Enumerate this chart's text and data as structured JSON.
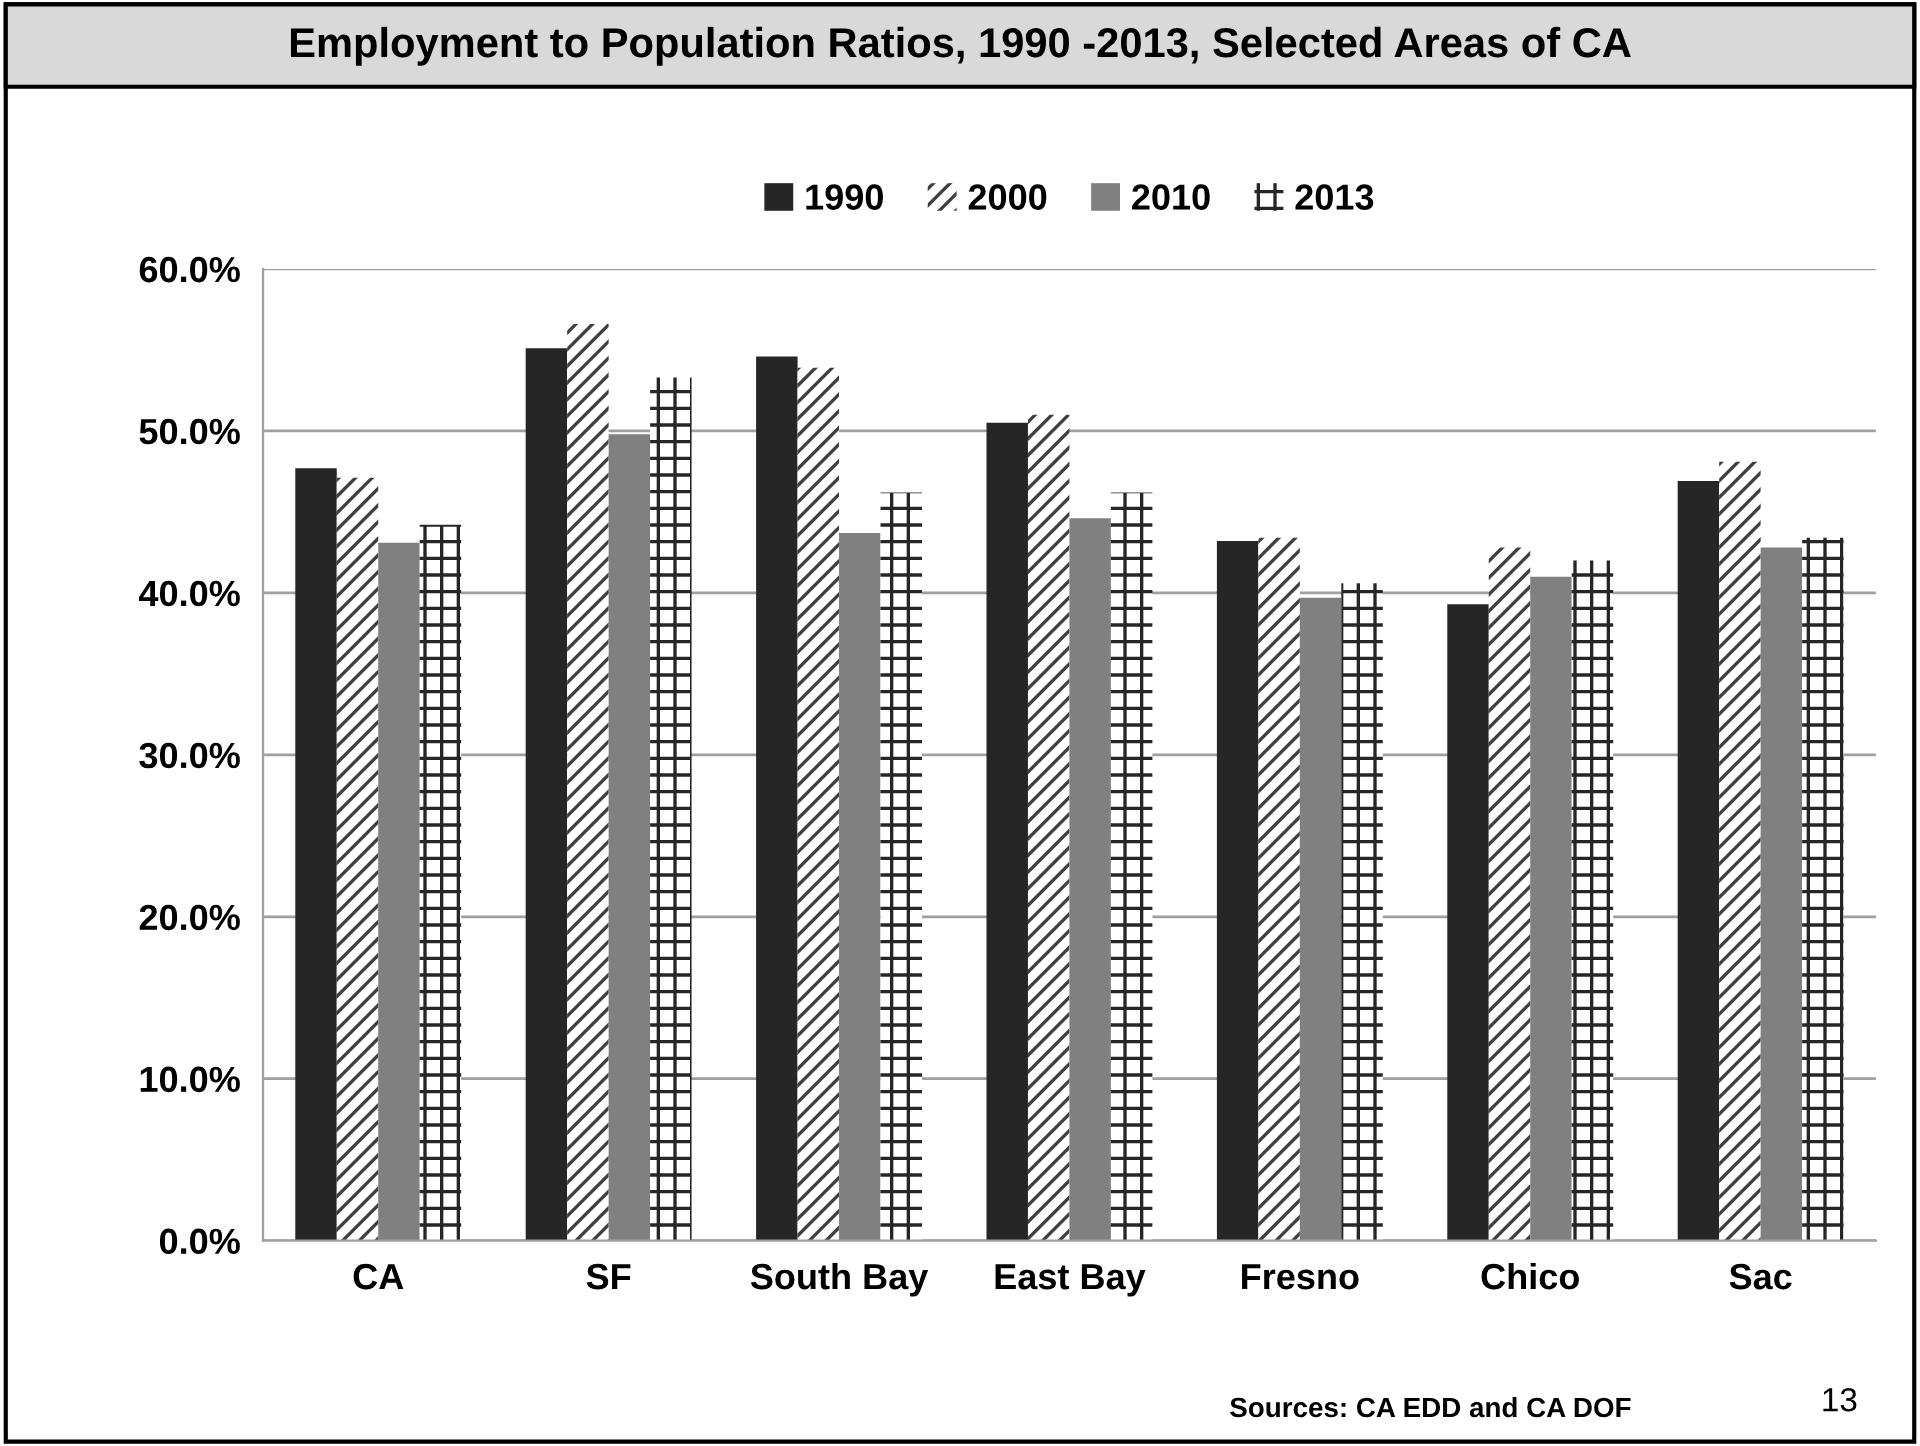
{
  "chart_data": {
    "type": "bar",
    "title": "Employment to Population Ratios, 1990 -2013, Selected Areas of CA",
    "categories": [
      "CA",
      "SF",
      "South Bay",
      "East Bay",
      "Fresno",
      "Chico",
      "Sac"
    ],
    "series": [
      {
        "name": "1990",
        "color": "#262626",
        "values": [
          47.7,
          55.1,
          54.6,
          50.5,
          43.2,
          39.3,
          46.9
        ]
      },
      {
        "name": "2000",
        "color": "#404040",
        "values": [
          47.1,
          56.6,
          53.9,
          51.0,
          43.4,
          42.8,
          48.1
        ]
      },
      {
        "name": "2010",
        "color": "#808080",
        "values": [
          43.1,
          49.8,
          43.7,
          44.6,
          39.7,
          41.0,
          42.8
        ]
      },
      {
        "name": "2013",
        "color": "#262626",
        "values": [
          44.2,
          53.3,
          46.2,
          46.2,
          40.6,
          42.0,
          43.4
        ]
      }
    ],
    "ylim": [
      0,
      60
    ],
    "yticks": [
      {
        "value": 0,
        "label": "0.0%"
      },
      {
        "value": 10,
        "label": "10.0%"
      },
      {
        "value": 20,
        "label": "20.0%"
      },
      {
        "value": 30,
        "label": "30.0%"
      },
      {
        "value": 40,
        "label": "40.0%"
      },
      {
        "value": 50,
        "label": "50.0%"
      },
      {
        "value": 60,
        "label": "60.0%"
      }
    ],
    "grid": "y",
    "legend": "top",
    "annotations": [
      "Sources: CA EDD and CA DOF",
      "13"
    ]
  }
}
